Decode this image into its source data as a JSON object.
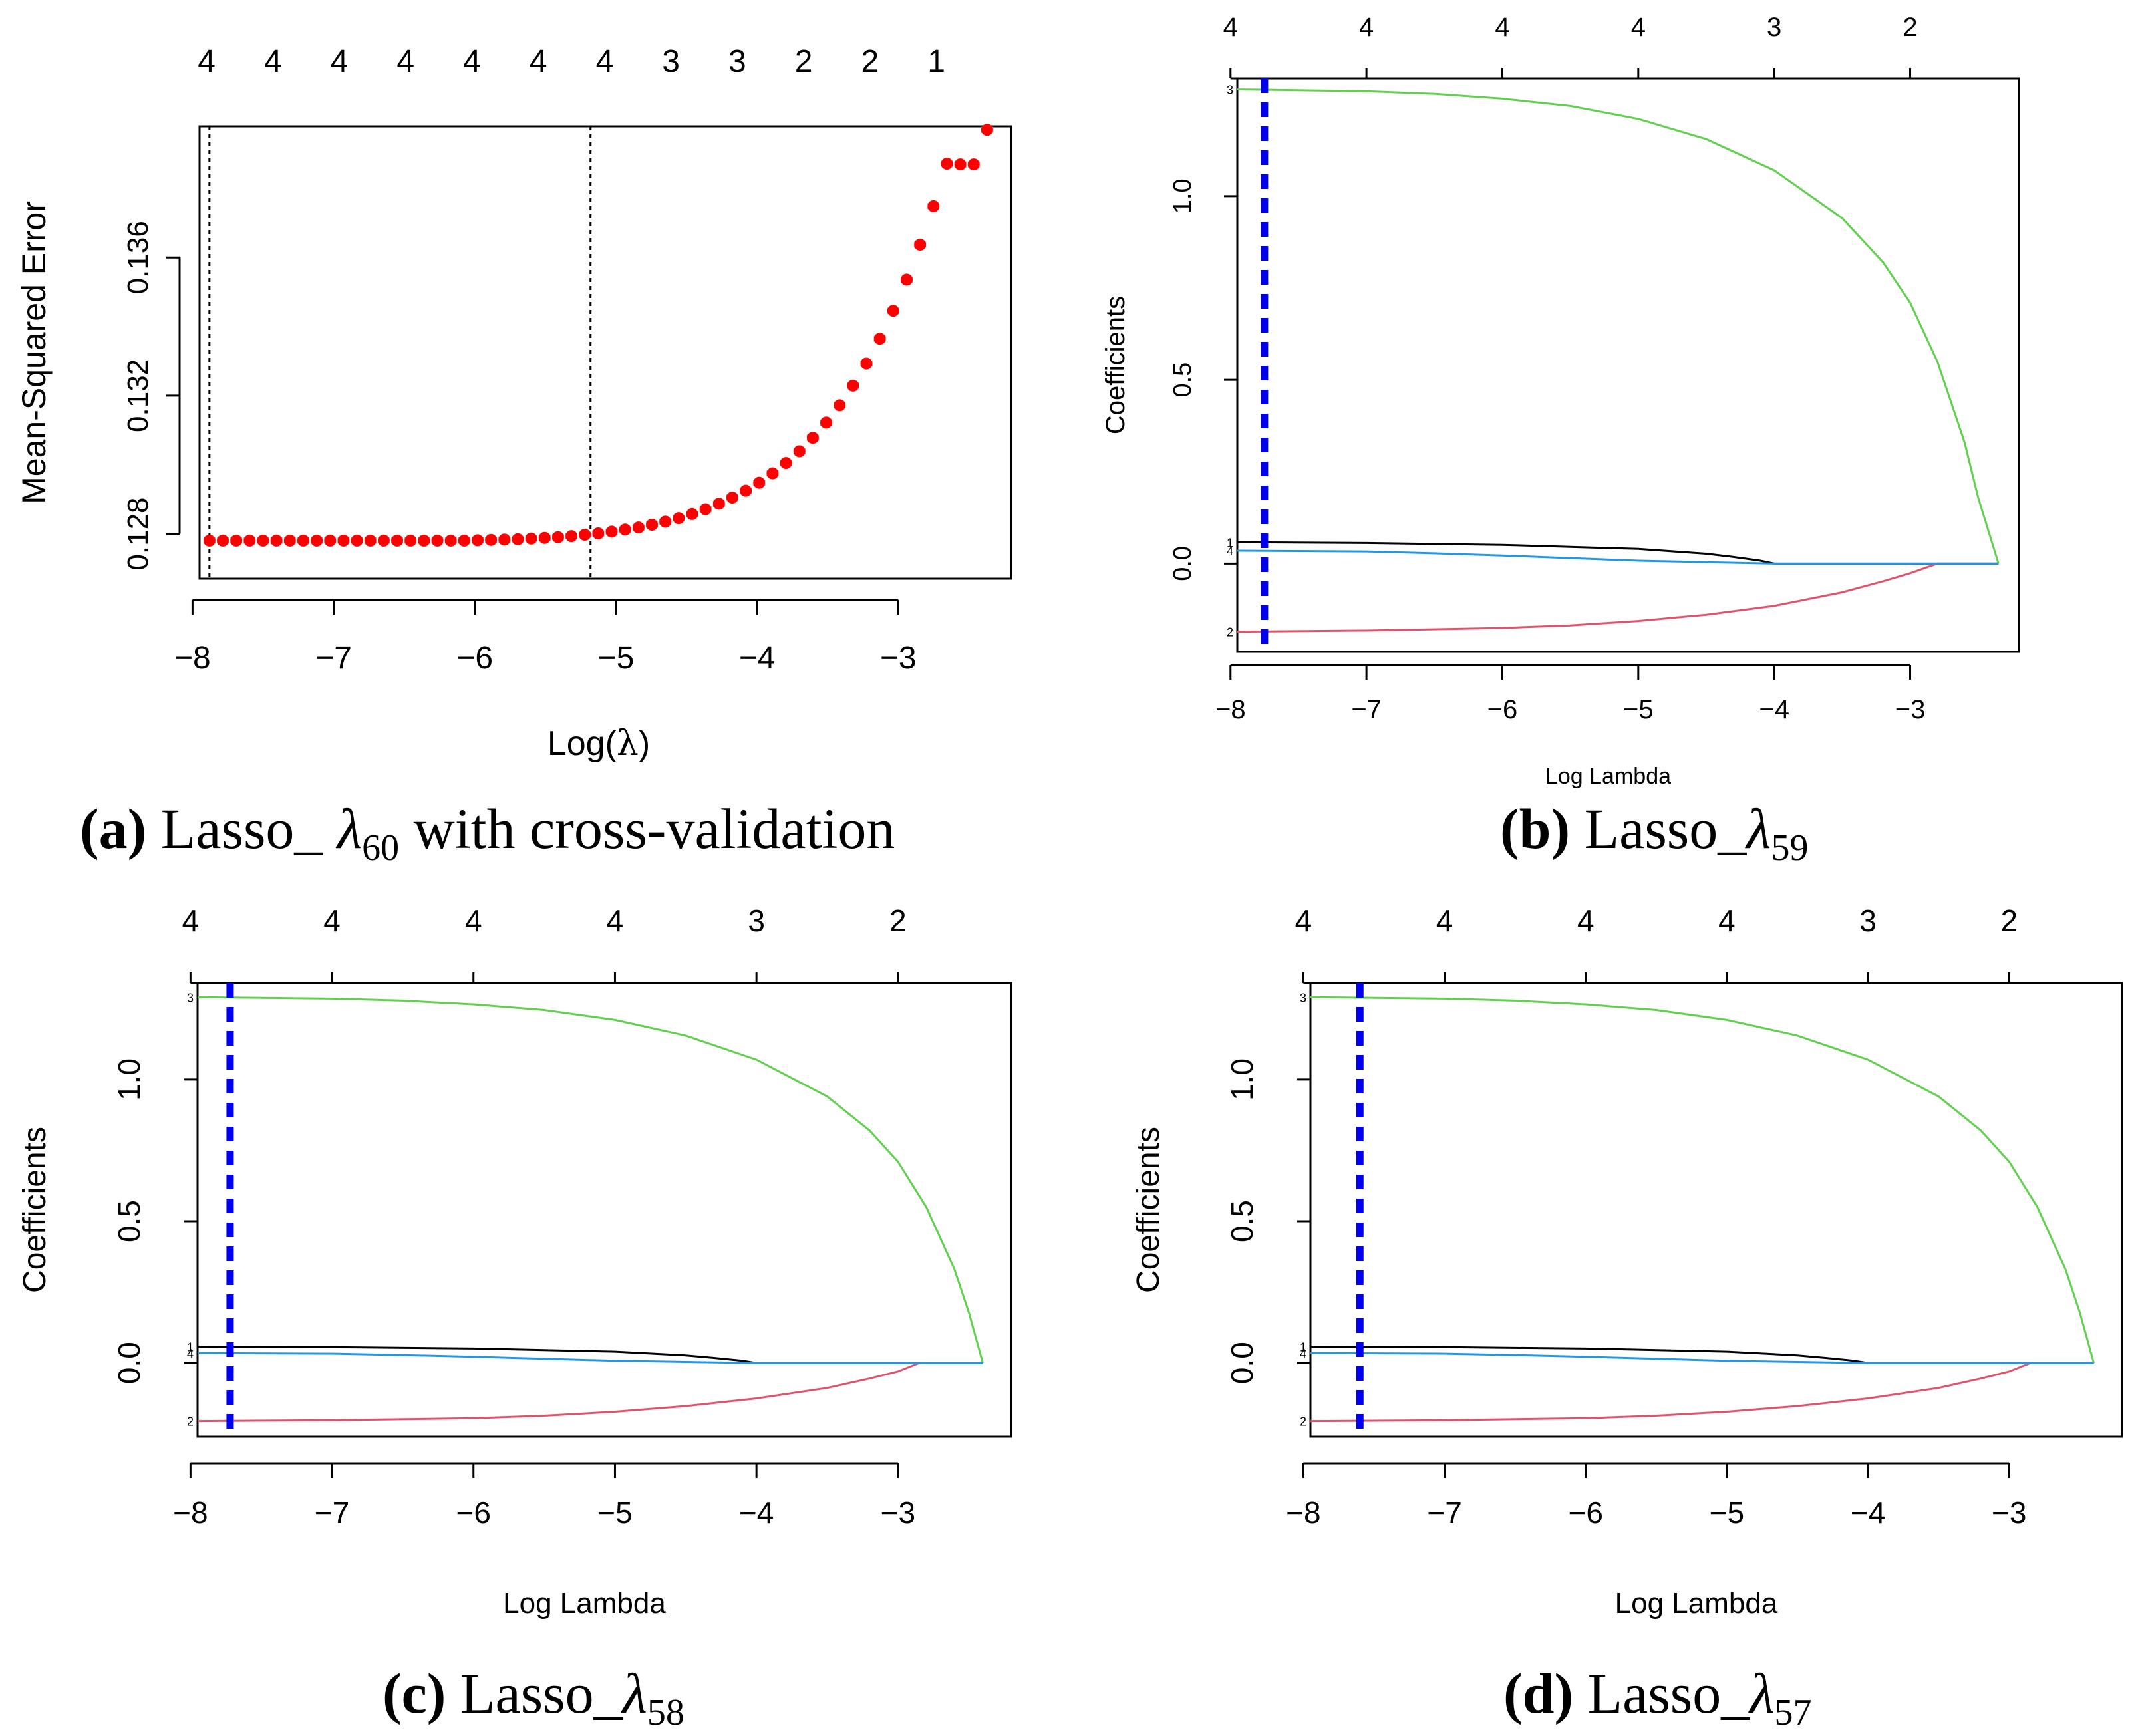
{
  "colors": {
    "points": "#ff0000",
    "errorbar": "#999999",
    "line1": "#000000",
    "line2": "#df536b",
    "line3": "#61d04f",
    "line4": "#2297e6",
    "lambda": "#0000ee"
  },
  "chart_data": [
    {
      "id": "a",
      "type": "scatter",
      "caption_letter": "(a)",
      "caption_text": "Lasso_ ",
      "caption_lambda": "λ",
      "caption_sub": "60",
      "caption_rest": " with cross-validation",
      "xlabel_prefix": "Log(",
      "xlabel_lambda": "λ",
      "xlabel_suffix": ")",
      "ylabel": "Mean-Squared Error",
      "xlim": [
        -7.95,
        -2.2
      ],
      "ylim": [
        0.1267,
        0.1398
      ],
      "xticks": [
        -8,
        -7,
        -6,
        -5,
        -4,
        -3
      ],
      "xtick_labels": [
        "−8",
        "−7",
        "−6",
        "−5",
        "−4",
        "−3"
      ],
      "yticks": [
        0.128,
        0.132,
        0.136
      ],
      "ytick_labels": [
        "0.128",
        "0.132",
        "0.136"
      ],
      "top_x": [
        -7.9,
        -7.43,
        -6.96,
        -6.49,
        -6.02,
        -5.55,
        -5.08,
        -4.61,
        -4.14,
        -3.67,
        -3.2,
        -2.73
      ],
      "top_labels": [
        "4",
        "4",
        "4",
        "4",
        "4",
        "4",
        "4",
        "3",
        "3",
        "2",
        "2",
        "1"
      ],
      "vlines": [
        -7.88,
        -5.18
      ],
      "x": [
        -7.88,
        -7.785,
        -7.69,
        -7.595,
        -7.5,
        -7.405,
        -7.31,
        -7.215,
        -7.12,
        -7.025,
        -6.93,
        -6.835,
        -6.74,
        -6.645,
        -6.55,
        -6.455,
        -6.36,
        -6.265,
        -6.17,
        -6.075,
        -5.98,
        -5.885,
        -5.79,
        -5.695,
        -5.6,
        -5.505,
        -5.41,
        -5.315,
        -5.22,
        -5.125,
        -5.03,
        -4.935,
        -4.84,
        -4.745,
        -4.65,
        -4.555,
        -4.46,
        -4.365,
        -4.27,
        -4.175,
        -4.08,
        -3.985,
        -3.89,
        -3.795,
        -3.7,
        -3.605,
        -3.51,
        -3.415,
        -3.32,
        -3.225,
        -3.13,
        -3.035,
        -2.94,
        -2.845,
        -2.75,
        -2.655,
        -2.56,
        -2.465,
        -2.37
      ],
      "y": [
        0.1278,
        0.1278,
        0.1278,
        0.1278,
        0.1278,
        0.1278,
        0.1278,
        0.1278,
        0.1278,
        0.1278,
        0.1278,
        0.1278,
        0.1278,
        0.1278,
        0.1278,
        0.1278,
        0.1278,
        0.1278,
        0.1278,
        0.1278,
        0.12781,
        0.12782,
        0.12783,
        0.12784,
        0.12786,
        0.12788,
        0.1279,
        0.12793,
        0.12797,
        0.12801,
        0.12806,
        0.12812,
        0.12818,
        0.12826,
        0.12835,
        0.12845,
        0.12857,
        0.12871,
        0.12887,
        0.12905,
        0.12925,
        0.12948,
        0.12975,
        0.13005,
        0.13039,
        0.13078,
        0.13122,
        0.13172,
        0.13229,
        0.13293,
        0.13365,
        0.13446,
        0.13536,
        0.13637,
        0.13749,
        0.13872,
        0.1387,
        0.1387,
        0.1397
      ],
      "err": 6e-05
    },
    {
      "id": "b",
      "type": "line",
      "caption_letter": "(b)",
      "caption_text": "Lasso_",
      "caption_lambda": "λ",
      "caption_sub": "59",
      "xlabel": "Log Lambda",
      "ylabel": "Coefficients",
      "xlim": [
        -7.95,
        -2.2
      ],
      "ylim": [
        -0.24,
        1.32
      ],
      "xticks": [
        -8,
        -7,
        -6,
        -5,
        -4,
        -3
      ],
      "xtick_labels": [
        "−8",
        "−7",
        "−6",
        "−5",
        "−4",
        "−3"
      ],
      "yticks": [
        0.0,
        0.5,
        1.0
      ],
      "ytick_labels": [
        "0.0",
        "0.5",
        "1.0"
      ],
      "top_x": [
        -8,
        -7,
        -6,
        -5,
        -4,
        -3
      ],
      "top_labels": [
        "4",
        "4",
        "4",
        "4",
        "3",
        "2"
      ],
      "lambda_line": -7.75,
      "series": [
        {
          "name": "1",
          "label": "1",
          "x": [
            -7.95,
            -7.0,
            -6.0,
            -5.0,
            -4.5,
            -4.3,
            -4.1,
            -4.0,
            -2.35
          ],
          "y": [
            0.058,
            0.056,
            0.051,
            0.04,
            0.027,
            0.018,
            0.008,
            0.0,
            0.0
          ]
        },
        {
          "name": "2",
          "label": "2",
          "x": [
            -7.95,
            -7.0,
            -6.0,
            -5.5,
            -5.0,
            -4.5,
            -4.0,
            -3.5,
            -3.2,
            -3.0,
            -2.8,
            -2.35
          ],
          "y": [
            -0.185,
            -0.182,
            -0.175,
            -0.168,
            -0.156,
            -0.139,
            -0.115,
            -0.078,
            -0.048,
            -0.026,
            0.0,
            0.0
          ]
        },
        {
          "name": "3",
          "label": "3",
          "x": [
            -7.95,
            -7.5,
            -7.0,
            -6.5,
            -6.0,
            -5.5,
            -5.0,
            -4.5,
            -4.0,
            -3.5,
            -3.2,
            -3.0,
            -2.8,
            -2.6,
            -2.5,
            -2.35
          ],
          "y": [
            1.29,
            1.288,
            1.285,
            1.278,
            1.265,
            1.245,
            1.21,
            1.155,
            1.07,
            0.94,
            0.82,
            0.71,
            0.55,
            0.33,
            0.18,
            0.0
          ]
        },
        {
          "name": "4",
          "label": "4",
          "x": [
            -7.95,
            -7.0,
            -6.5,
            -6.0,
            -5.5,
            -5.0,
            -4.5,
            -4.0,
            -2.35
          ],
          "y": [
            0.035,
            0.033,
            0.028,
            0.022,
            0.015,
            0.008,
            0.004,
            0.0,
            0.0
          ]
        }
      ]
    },
    {
      "id": "c",
      "type": "line",
      "caption_letter": "(c)",
      "caption_text": "Lasso_",
      "caption_lambda": "λ",
      "caption_sub": "58",
      "xlabel": "Log Lambda",
      "ylabel": "Coefficients",
      "xlim": [
        -7.95,
        -2.2
      ],
      "ylim": [
        -0.26,
        1.34
      ],
      "xticks": [
        -8,
        -7,
        -6,
        -5,
        -4,
        -3
      ],
      "xtick_labels": [
        "−8",
        "−7",
        "−6",
        "−5",
        "−4",
        "−3"
      ],
      "yticks": [
        0.0,
        0.5,
        1.0
      ],
      "ytick_labels": [
        "0.0",
        "0.5",
        "1.0"
      ],
      "top_x": [
        -8,
        -7,
        -6,
        -5,
        -4,
        -3
      ],
      "top_labels": [
        "4",
        "4",
        "4",
        "4",
        "3",
        "2"
      ],
      "lambda_line": -7.72,
      "series": [
        {
          "name": "1",
          "label": "1",
          "x": [
            -7.95,
            -7.0,
            -6.0,
            -5.0,
            -4.5,
            -4.3,
            -4.1,
            -4.0,
            -2.4
          ],
          "y": [
            0.058,
            0.056,
            0.051,
            0.04,
            0.027,
            0.018,
            0.008,
            0.0,
            0.0
          ]
        },
        {
          "name": "2",
          "label": "2",
          "x": [
            -7.95,
            -7.0,
            -6.0,
            -5.5,
            -5.0,
            -4.5,
            -4.0,
            -3.5,
            -3.2,
            -3.0,
            -2.85,
            -2.4
          ],
          "y": [
            -0.205,
            -0.202,
            -0.195,
            -0.186,
            -0.172,
            -0.152,
            -0.125,
            -0.088,
            -0.055,
            -0.03,
            0.0,
            0.0
          ]
        },
        {
          "name": "3",
          "label": "3",
          "x": [
            -7.95,
            -7.5,
            -7.0,
            -6.5,
            -6.0,
            -5.5,
            -5.0,
            -4.5,
            -4.0,
            -3.5,
            -3.2,
            -3.0,
            -2.8,
            -2.6,
            -2.5,
            -2.4
          ],
          "y": [
            1.29,
            1.288,
            1.285,
            1.278,
            1.265,
            1.245,
            1.21,
            1.155,
            1.07,
            0.94,
            0.82,
            0.71,
            0.55,
            0.33,
            0.18,
            0.0
          ]
        },
        {
          "name": "4",
          "label": "4",
          "x": [
            -7.95,
            -7.0,
            -6.5,
            -6.0,
            -5.5,
            -5.0,
            -4.5,
            -4.0,
            -2.4
          ],
          "y": [
            0.035,
            0.033,
            0.028,
            0.022,
            0.015,
            0.008,
            0.004,
            0.0,
            0.0
          ]
        }
      ]
    },
    {
      "id": "d",
      "type": "line",
      "caption_letter": "(d)",
      "caption_text": "Lasso_",
      "caption_lambda": "λ",
      "caption_sub": "57",
      "xlabel": "Log Lambda",
      "ylabel": "Coefficients",
      "xlim": [
        -7.95,
        -2.2
      ],
      "ylim": [
        -0.26,
        1.34
      ],
      "xticks": [
        -8,
        -7,
        -6,
        -5,
        -4,
        -3
      ],
      "xtick_labels": [
        "−8",
        "−7",
        "−6",
        "−5",
        "−4",
        "−3"
      ],
      "yticks": [
        0.0,
        0.5,
        1.0
      ],
      "ytick_labels": [
        "0.0",
        "0.5",
        "1.0"
      ],
      "top_x": [
        -8,
        -7,
        -6,
        -5,
        -4,
        -3
      ],
      "top_labels": [
        "4",
        "4",
        "4",
        "4",
        "3",
        "2"
      ],
      "lambda_line": -7.6,
      "series": [
        {
          "name": "1",
          "label": "1",
          "x": [
            -7.95,
            -7.0,
            -6.0,
            -5.0,
            -4.5,
            -4.3,
            -4.1,
            -4.0,
            -2.4
          ],
          "y": [
            0.058,
            0.056,
            0.051,
            0.04,
            0.027,
            0.018,
            0.008,
            0.0,
            0.0
          ]
        },
        {
          "name": "2",
          "label": "2",
          "x": [
            -7.95,
            -7.0,
            -6.0,
            -5.5,
            -5.0,
            -4.5,
            -4.0,
            -3.5,
            -3.2,
            -3.0,
            -2.85,
            -2.4
          ],
          "y": [
            -0.205,
            -0.202,
            -0.195,
            -0.186,
            -0.172,
            -0.152,
            -0.125,
            -0.088,
            -0.055,
            -0.03,
            0.0,
            0.0
          ]
        },
        {
          "name": "3",
          "label": "3",
          "x": [
            -7.95,
            -7.5,
            -7.0,
            -6.5,
            -6.0,
            -5.5,
            -5.0,
            -4.5,
            -4.0,
            -3.5,
            -3.2,
            -3.0,
            -2.8,
            -2.6,
            -2.5,
            -2.4
          ],
          "y": [
            1.29,
            1.288,
            1.285,
            1.278,
            1.265,
            1.245,
            1.21,
            1.155,
            1.07,
            0.94,
            0.82,
            0.71,
            0.55,
            0.33,
            0.18,
            0.0
          ]
        },
        {
          "name": "4",
          "label": "4",
          "x": [
            -7.95,
            -7.0,
            -6.5,
            -6.0,
            -5.5,
            -5.0,
            -4.5,
            -4.0,
            -2.4
          ],
          "y": [
            0.035,
            0.033,
            0.028,
            0.022,
            0.015,
            0.008,
            0.004,
            0.0,
            0.0
          ]
        }
      ]
    }
  ]
}
